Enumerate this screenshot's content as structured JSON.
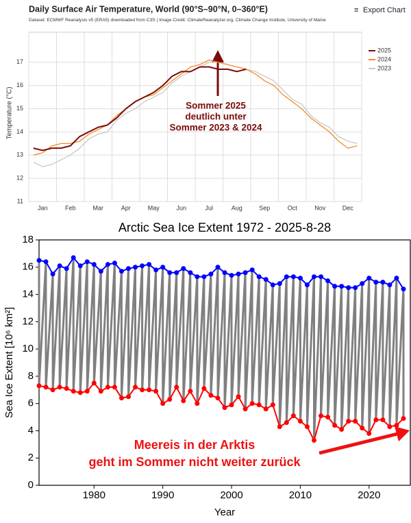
{
  "toolbar": {
    "export": "Export Chart"
  },
  "chart_data": [
    {
      "type": "line",
      "title": "Daily Surface Air Temperature, World (90°S–90°N, 0–360°E)",
      "subtitle": "Dataset: ECMWF Reanalysis v5 (ERA5) downloaded from C3S | Image Credit: ClimateReanalyzer.org, Climate Change Institute, University of Maine",
      "y_label": "Temperature (°C)",
      "categories": [
        null,
        "Jan",
        null,
        null,
        "Feb",
        null,
        null,
        "Mar",
        null,
        null,
        "Apr",
        null,
        null,
        "May",
        null,
        null,
        "Jun",
        null,
        null,
        "Jul",
        null,
        null,
        "Aug",
        null,
        null,
        "Sep",
        null,
        null,
        "Oct",
        null,
        null,
        "Nov",
        null,
        null,
        "Dec",
        null
      ],
      "series": [
        {
          "name": "2025",
          "color": "#7b0a0a",
          "values": [
            13.3,
            13.2,
            13.3,
            13.3,
            13.4,
            13.8,
            14.0,
            14.2,
            14.3,
            14.6,
            15.0,
            15.3,
            15.5,
            15.7,
            16.0,
            16.4,
            16.6,
            16.6,
            16.8,
            16.8,
            16.7,
            16.7,
            16.6,
            16.7,
            null,
            null,
            null,
            null,
            null,
            null,
            null,
            null,
            null,
            null,
            null,
            null
          ]
        },
        {
          "name": "2024",
          "color": "#f28c28",
          "values": [
            13.0,
            13.1,
            13.4,
            13.5,
            13.5,
            13.6,
            13.9,
            14.1,
            14.3,
            14.7,
            15.0,
            15.3,
            15.5,
            15.6,
            15.9,
            16.2,
            16.5,
            16.8,
            16.9,
            17.1,
            17.0,
            16.9,
            16.8,
            16.7,
            16.5,
            16.2,
            16.0,
            15.6,
            15.3,
            15.0,
            14.6,
            14.3,
            14.0,
            13.6,
            13.3,
            13.4
          ]
        },
        {
          "name": "2023",
          "color": "#c8c8c8",
          "values": [
            12.7,
            12.5,
            12.6,
            12.8,
            13.0,
            13.3,
            13.7,
            13.9,
            14.0,
            14.5,
            14.8,
            15.0,
            15.3,
            15.5,
            15.7,
            16.1,
            16.4,
            16.6,
            16.8,
            17.0,
            17.0,
            16.9,
            16.8,
            16.7,
            16.6,
            16.4,
            16.2,
            15.8,
            15.4,
            15.2,
            14.7,
            14.4,
            14.2,
            13.8,
            13.6,
            13.5
          ]
        }
      ],
      "ylim": [
        11,
        18
      ],
      "yticks": [
        11,
        12,
        13,
        14,
        15,
        16,
        17
      ],
      "grid": true,
      "legend": "right",
      "annotation": [
        "Sommer 2025",
        "deutlich unter",
        "Sommer 2023 & 2024"
      ]
    },
    {
      "type": "line",
      "title": "Arctic Sea Ice Extent 1972 - 2025-8-28",
      "x_label": "Year",
      "y_label": "Sea Ice Extent [10⁶ km²]",
      "x": [
        1972,
        1973,
        1974,
        1975,
        1976,
        1977,
        1978,
        1979,
        1980,
        1981,
        1982,
        1983,
        1984,
        1985,
        1986,
        1987,
        1988,
        1989,
        1990,
        1991,
        1992,
        1993,
        1994,
        1995,
        1996,
        1997,
        1998,
        1999,
        2000,
        2001,
        2002,
        2003,
        2004,
        2005,
        2006,
        2007,
        2008,
        2009,
        2010,
        2011,
        2012,
        2013,
        2014,
        2015,
        2016,
        2017,
        2018,
        2019,
        2020,
        2021,
        2022,
        2023,
        2024,
        2025
      ],
      "line_color": "#808080",
      "series": [
        {
          "color": "#0000ff",
          "values": [
            16.5,
            16.4,
            15.5,
            16.1,
            15.9,
            16.7,
            16.1,
            16.4,
            16.2,
            15.7,
            16.2,
            16.3,
            15.7,
            15.9,
            16.0,
            16.1,
            16.2,
            15.8,
            16.0,
            15.6,
            15.6,
            15.9,
            15.6,
            15.3,
            15.3,
            15.5,
            16.0,
            15.6,
            15.4,
            15.5,
            15.6,
            15.8,
            15.3,
            15.1,
            14.7,
            14.8,
            15.3,
            15.3,
            15.2,
            14.7,
            15.3,
            15.3,
            15.0,
            14.6,
            14.6,
            14.5,
            14.5,
            14.8,
            15.2,
            14.9,
            14.9,
            14.7,
            15.2,
            14.4
          ]
        },
        {
          "color": "#ff0000",
          "values": [
            7.3,
            7.2,
            7.0,
            7.2,
            7.1,
            6.9,
            6.8,
            6.9,
            7.5,
            6.9,
            7.2,
            7.2,
            6.4,
            6.5,
            7.2,
            7.0,
            7.0,
            6.9,
            6.0,
            6.3,
            7.2,
            6.2,
            6.9,
            6.0,
            7.1,
            6.6,
            6.4,
            5.7,
            5.9,
            6.5,
            5.6,
            6.0,
            5.9,
            5.6,
            5.9,
            4.3,
            4.6,
            5.1,
            4.7,
            4.3,
            3.3,
            5.1,
            5.0,
            4.4,
            4.1,
            4.7,
            4.7,
            4.2,
            3.8,
            4.8,
            4.8,
            4.3,
            4.4,
            4.9
          ]
        }
      ],
      "xlim": [
        1972,
        2026
      ],
      "xticks": [
        1980,
        1990,
        2000,
        2010,
        2020
      ],
      "ylim": [
        0,
        18
      ],
      "yticks": [
        0,
        2,
        4,
        6,
        8,
        10,
        12,
        14,
        16,
        18
      ],
      "annotation": [
        "Meereis in der Arktis",
        "geht im Sommer nicht weiter zurück"
      ]
    }
  ]
}
